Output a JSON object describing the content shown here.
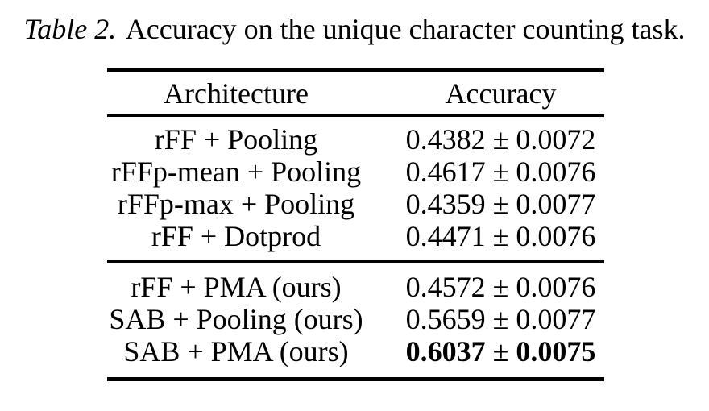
{
  "caption": {
    "label": "Table 2.",
    "text": "Accuracy on the unique character counting task."
  },
  "table": {
    "columns": [
      "Architecture",
      "Accuracy"
    ],
    "sections": [
      {
        "rows": [
          {
            "architecture": "rFF + Pooling",
            "accuracy": "0.4382 ± 0.0072"
          },
          {
            "architecture": "rFFp-mean + Pooling",
            "accuracy": "0.4617 ± 0.0076"
          },
          {
            "architecture": "rFFp-max + Pooling",
            "accuracy": "0.4359 ± 0.0077"
          },
          {
            "architecture": "rFF + Dotprod",
            "accuracy": "0.4471 ± 0.0076"
          }
        ]
      },
      {
        "rows": [
          {
            "architecture": "rFF + PMA (ours)",
            "accuracy": "0.4572 ± 0.0076"
          },
          {
            "architecture": "SAB + Pooling (ours)",
            "accuracy": "0.5659 ± 0.0077"
          },
          {
            "architecture": "SAB + PMA (ours)",
            "accuracy": "0.6037 ± 0.0075"
          }
        ]
      }
    ]
  }
}
